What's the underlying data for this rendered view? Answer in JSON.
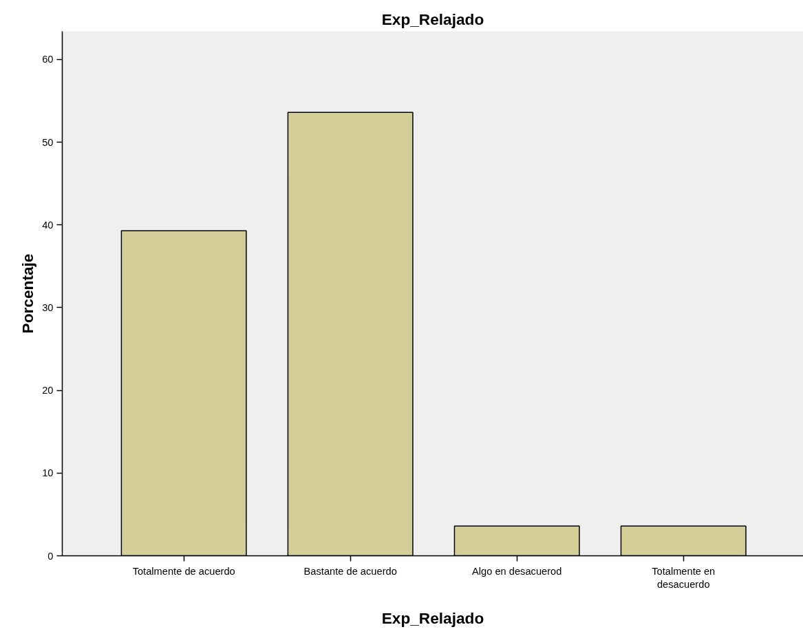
{
  "chart_data": {
    "type": "bar",
    "title": "Exp_Relajado",
    "xlabel": "Exp_Relajado",
    "ylabel": "Porcentaje",
    "categories": [
      "Totalmente de acuerdo",
      "Bastante de acuerdo",
      "Algo en desacuerod",
      "Totalmente en desacuerdo"
    ],
    "values": [
      39.3,
      53.6,
      3.6,
      3.6
    ],
    "color": "#d3ce98",
    "ylim": [
      0,
      63.4
    ],
    "yticks": [
      0,
      10,
      20,
      30,
      40,
      50,
      60
    ],
    "grid": false
  }
}
